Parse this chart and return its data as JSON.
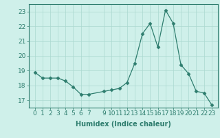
{
  "x": [
    0,
    1,
    2,
    3,
    4,
    5,
    6,
    7,
    9,
    10,
    11,
    12,
    13,
    14,
    15,
    16,
    17,
    18,
    19,
    20,
    21,
    22,
    23
  ],
  "y": [
    18.9,
    18.5,
    18.5,
    18.5,
    18.3,
    17.9,
    17.4,
    17.4,
    17.6,
    17.7,
    17.8,
    18.2,
    19.5,
    21.5,
    22.2,
    20.6,
    23.1,
    22.2,
    19.4,
    18.8,
    17.6,
    17.5,
    16.7
  ],
  "xlabel": "Humidex (Indice chaleur)",
  "ylim": [
    16.5,
    23.5
  ],
  "yticks": [
    17,
    18,
    19,
    20,
    21,
    22,
    23
  ],
  "xticks": [
    0,
    1,
    2,
    3,
    4,
    5,
    6,
    7,
    9,
    10,
    11,
    12,
    13,
    14,
    15,
    16,
    17,
    18,
    19,
    20,
    21,
    22,
    23
  ],
  "line_color": "#2e7d6e",
  "marker": "D",
  "marker_size": 2.5,
  "bg_color": "#cff0ea",
  "grid_color": "#aad8d0",
  "label_fontsize": 7,
  "tick_fontsize": 6.5
}
